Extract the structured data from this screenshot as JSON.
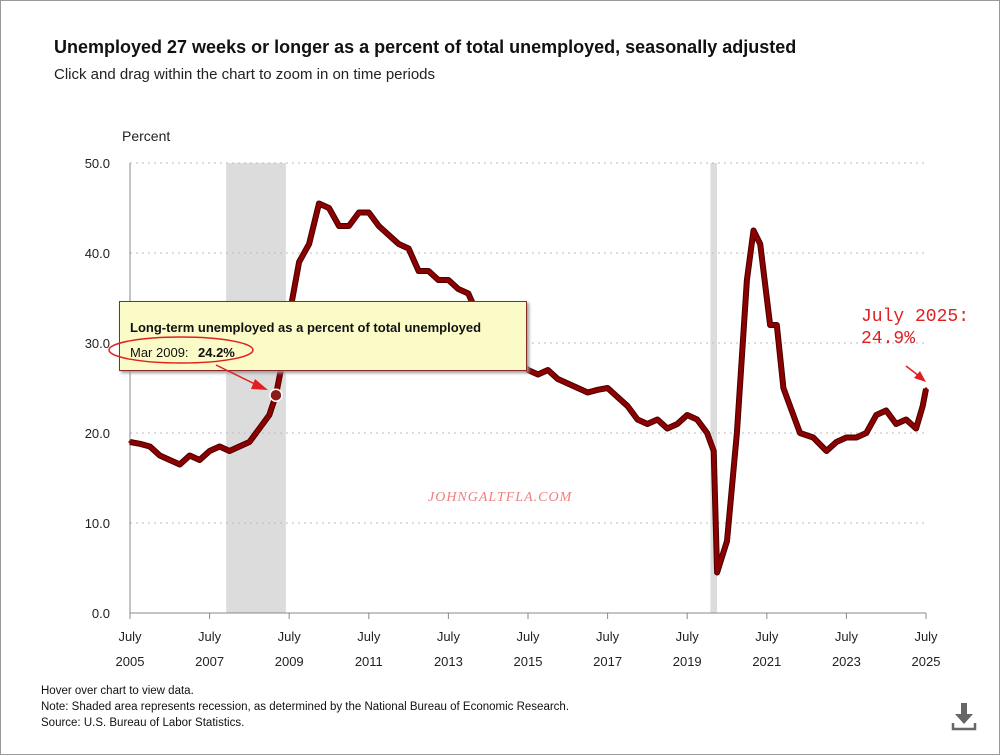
{
  "header": {
    "title": "Unemployed 27 weeks or longer as a percent of total unemployed, seasonally adjusted",
    "subtitle": "Click and drag within the chart to zoom in on time periods"
  },
  "chart_data": {
    "type": "line",
    "ylabel": "Percent",
    "ylim": [
      0,
      50
    ],
    "yticks": [
      "0.0",
      "10.0",
      "20.0",
      "30.0",
      "40.0",
      "50.0"
    ],
    "xlim": [
      "2005-07",
      "2025-07"
    ],
    "xticks": [
      [
        "July",
        "2005"
      ],
      [
        "July",
        "2007"
      ],
      [
        "July",
        "2009"
      ],
      [
        "July",
        "2011"
      ],
      [
        "July",
        "2013"
      ],
      [
        "July",
        "2015"
      ],
      [
        "July",
        "2017"
      ],
      [
        "July",
        "2019"
      ],
      [
        "July",
        "2021"
      ],
      [
        "July",
        "2023"
      ],
      [
        "July",
        "2025"
      ]
    ],
    "grid": true,
    "line_color": "#8b0000",
    "recessions": [
      [
        "2007-12",
        "2009-06"
      ],
      [
        "2020-02",
        "2020-04"
      ]
    ],
    "series": [
      {
        "x": [
          "2005-07",
          "2005-10",
          "2006-01",
          "2006-04",
          "2006-07",
          "2006-10",
          "2007-01",
          "2007-04",
          "2007-07",
          "2007-10",
          "2008-01",
          "2008-04",
          "2008-07",
          "2008-10",
          "2009-01",
          "2009-03",
          "2009-05",
          "2009-07",
          "2009-10",
          "2010-01",
          "2010-04",
          "2010-07",
          "2010-10",
          "2011-01",
          "2011-04",
          "2011-07",
          "2011-10",
          "2012-01",
          "2012-04",
          "2012-07",
          "2012-10",
          "2013-01",
          "2013-04",
          "2013-07",
          "2013-10",
          "2014-01",
          "2014-04",
          "2014-07",
          "2014-10",
          "2015-01",
          "2015-04",
          "2015-07",
          "2015-10",
          "2016-01",
          "2016-04",
          "2016-07",
          "2016-10",
          "2017-01",
          "2017-04",
          "2017-07",
          "2017-10",
          "2018-01",
          "2018-04",
          "2018-07",
          "2018-10",
          "2019-01",
          "2019-04",
          "2019-07",
          "2019-10",
          "2020-01",
          "2020-03",
          "2020-04",
          "2020-07",
          "2020-10",
          "2021-01",
          "2021-03",
          "2021-05",
          "2021-08",
          "2021-10",
          "2021-12",
          "2022-02",
          "2022-05",
          "2022-09",
          "2023-01",
          "2023-04",
          "2023-07",
          "2023-10",
          "2024-01",
          "2024-04",
          "2024-07",
          "2024-10",
          "2025-01",
          "2025-04",
          "2025-06",
          "2025-07"
        ],
        "values": [
          19,
          18.8,
          18.5,
          17.5,
          17,
          16.5,
          17.5,
          17,
          18,
          18.5,
          18,
          18.5,
          19,
          20.5,
          22,
          24.2,
          28,
          33,
          39,
          41,
          45.5,
          45,
          43,
          43,
          44.5,
          44.5,
          43,
          42,
          41,
          40.5,
          38,
          38,
          37,
          37,
          36,
          35.5,
          33,
          32,
          31.5,
          30.5,
          28,
          27,
          26.5,
          27,
          26,
          25.5,
          25,
          24.5,
          24.8,
          25,
          24,
          23,
          21.5,
          21,
          21.5,
          20.5,
          21,
          22,
          21.5,
          20,
          18,
          4.5,
          8,
          20,
          37,
          42.5,
          41,
          32,
          32,
          25,
          23,
          20,
          19.5,
          18,
          19,
          19.5,
          19.5,
          20,
          22,
          22.5,
          21,
          21.5,
          20.5,
          23,
          24.9
        ]
      }
    ]
  },
  "tooltip": {
    "heading": "Long-term unemployed as a percent of total unemployed",
    "date": "Mar 2009:",
    "value": "24.2%"
  },
  "annotation": {
    "text": "July 2025:\n24.9%"
  },
  "watermark": "JOHNGALTFLA.COM",
  "footer": {
    "hover": "Hover over chart to view data.",
    "note": "Note: Shaded area represents recession, as determined by the National Bureau of Economic Research.",
    "source": "Source: U.S. Bureau of Labor Statistics."
  },
  "icons": {
    "download": "download-icon"
  }
}
